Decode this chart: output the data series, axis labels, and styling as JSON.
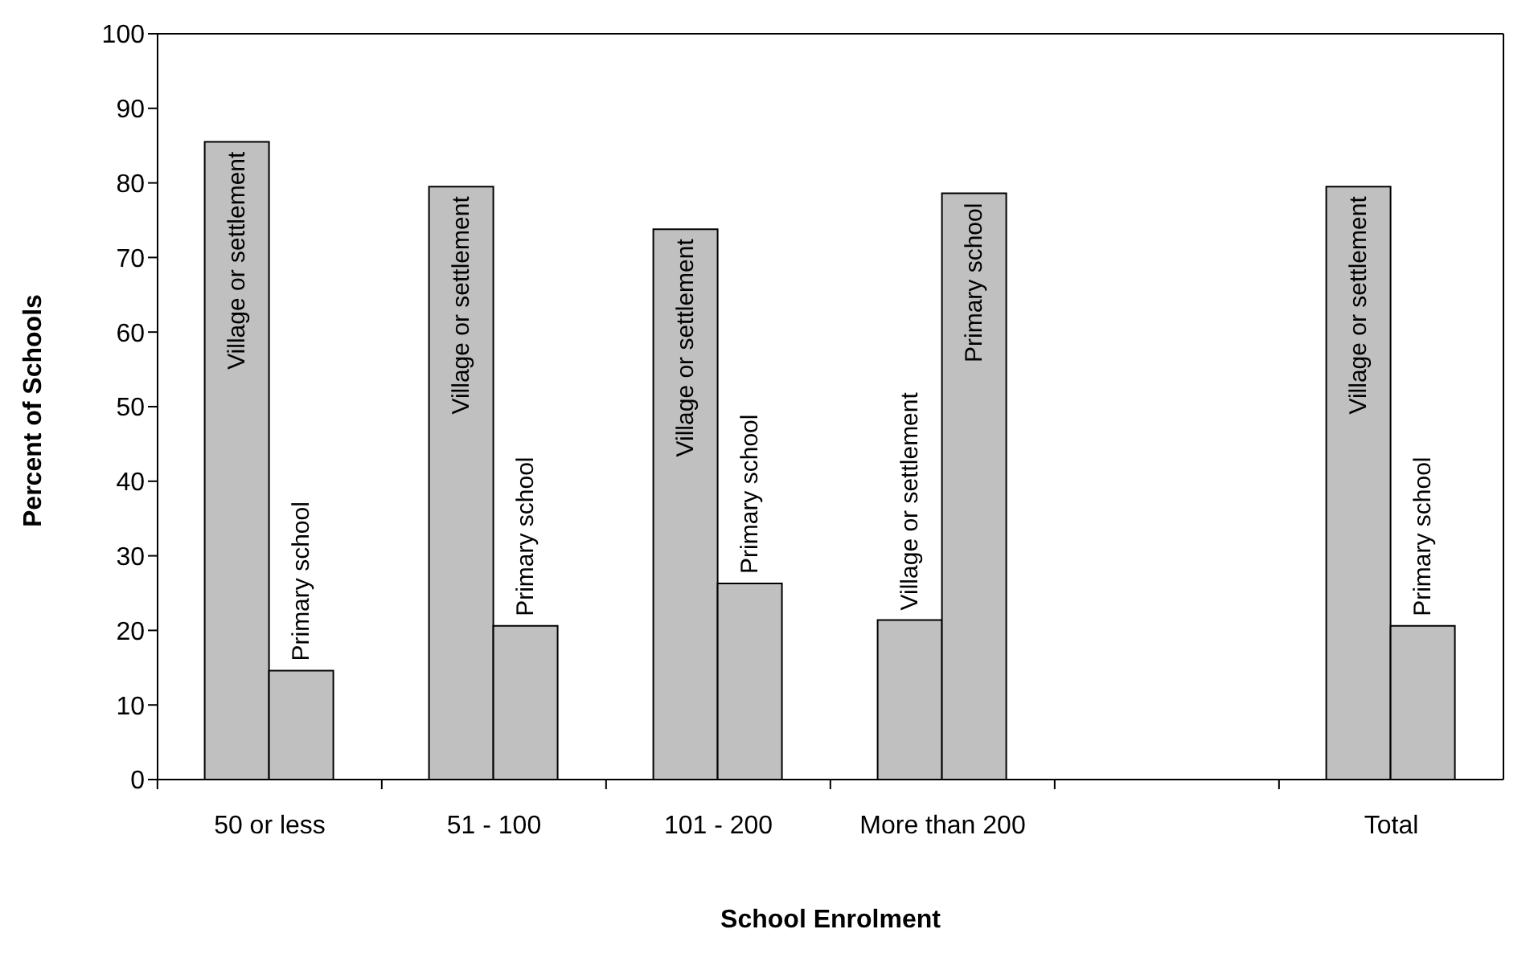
{
  "chart_data": {
    "type": "bar",
    "xlabel": "School Enrolment",
    "ylabel": "Percent of Schools",
    "categories": [
      "50 or less",
      "51 - 100",
      "101 - 200",
      "More than 200",
      null,
      "Total"
    ],
    "series": [
      {
        "name": "Village or settlement",
        "color": "#c0c0c0",
        "values": [
          85.5,
          79.5,
          73.8,
          21.4,
          null,
          79.5
        ]
      },
      {
        "name": "Primary school",
        "color": "#c0c0c0",
        "values": [
          14.6,
          20.6,
          26.3,
          78.6,
          null,
          20.6
        ]
      }
    ],
    "ylim": [
      0,
      100
    ],
    "yticks": [
      0,
      10,
      20,
      30,
      40,
      50,
      60,
      70,
      80,
      90,
      100
    ],
    "grid": false,
    "legend": false
  }
}
